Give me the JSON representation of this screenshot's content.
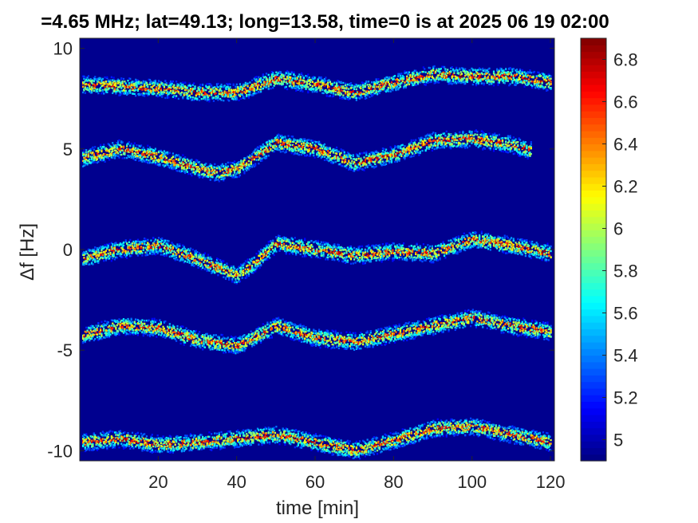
{
  "chart_data": {
    "type": "heatmap",
    "title": "=4.65 MHz;  lat=49.13; long=13.58, time=0 is at 2025 06 19 02:00",
    "xlabel": "time [min]",
    "ylabel": "Δf [Hz]",
    "xlim": [
      0,
      121
    ],
    "ylim": [
      -10.5,
      10.5
    ],
    "xticks": [
      20,
      40,
      60,
      80,
      100,
      120
    ],
    "xtick_labels": [
      "20",
      "40",
      "60",
      "80",
      "100",
      "120"
    ],
    "yticks": [
      -10,
      -5,
      0,
      5,
      10
    ],
    "ytick_labels": [
      "-10",
      "-5",
      "0",
      "5",
      "10"
    ],
    "colormap": "jet",
    "clim": [
      4.9,
      6.9
    ],
    "colorbar_ticks": [
      5,
      5.2,
      5.4,
      5.6,
      5.8,
      6,
      6.2,
      6.4,
      6.6,
      6.8
    ],
    "colorbar_tick_labels": [
      "5",
      "5.2",
      "5.4",
      "5.6",
      "5.8",
      "6",
      "6.2",
      "6.4",
      "6.6",
      "6.8"
    ],
    "background_color": "#00008f",
    "traces": [
      {
        "x": [
          0,
          10,
          20,
          30,
          40,
          50,
          60,
          70,
          80,
          90,
          100,
          110,
          120
        ],
        "y": [
          8.2,
          8.1,
          8.0,
          7.8,
          7.8,
          8.5,
          8.2,
          7.8,
          8.3,
          8.7,
          8.6,
          8.6,
          8.3
        ]
      },
      {
        "x": [
          0,
          10,
          20,
          30,
          35,
          40,
          50,
          60,
          70,
          80,
          90,
          100,
          110,
          115
        ],
        "y": [
          4.5,
          5.0,
          4.6,
          4.0,
          3.8,
          4.0,
          5.3,
          5.0,
          4.3,
          4.7,
          5.4,
          5.5,
          5.2,
          4.9
        ]
      },
      {
        "x": [
          0,
          10,
          20,
          30,
          40,
          45,
          50,
          60,
          70,
          80,
          90,
          100,
          110,
          120
        ],
        "y": [
          -0.5,
          0.0,
          0.2,
          -0.5,
          -1.3,
          -0.6,
          0.3,
          0.0,
          -0.3,
          -0.1,
          -0.2,
          0.5,
          0.2,
          -0.2
        ]
      },
      {
        "x": [
          0,
          10,
          20,
          30,
          40,
          50,
          60,
          70,
          80,
          90,
          100,
          110,
          120
        ],
        "y": [
          -4.3,
          -3.8,
          -3.9,
          -4.5,
          -4.8,
          -3.8,
          -4.4,
          -4.6,
          -4.2,
          -3.8,
          -3.4,
          -3.8,
          -4.1
        ]
      },
      {
        "x": [
          0,
          10,
          20,
          30,
          40,
          50,
          60,
          70,
          80,
          90,
          100,
          110,
          120
        ],
        "y": [
          -9.6,
          -9.4,
          -9.7,
          -9.6,
          -9.4,
          -9.2,
          -9.6,
          -10.0,
          -9.5,
          -8.9,
          -8.8,
          -9.2,
          -9.6
        ]
      }
    ],
    "grid": false
  }
}
